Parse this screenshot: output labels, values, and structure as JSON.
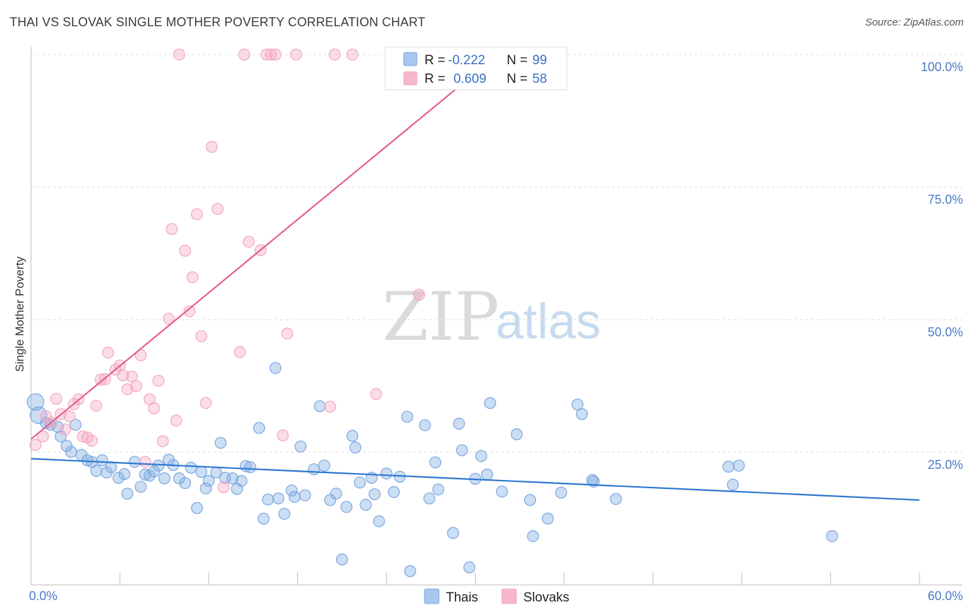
{
  "header": {
    "title": "THAI VS SLOVAK SINGLE MOTHER POVERTY CORRELATION CHART",
    "source": "Source: ZipAtlas.com"
  },
  "watermark": {
    "zip": "ZIP",
    "atlas": "atlas"
  },
  "legend_box": {
    "rows": [
      {
        "r_label": "R =",
        "r_value": "-0.222",
        "n_label": "N =",
        "n_value": "99",
        "color": "#a9c6ee"
      },
      {
        "r_label": "R =",
        "r_value": "0.609",
        "n_label": "N =",
        "n_value": "58",
        "color": "#f6b7ca"
      }
    ]
  },
  "chart_data": {
    "type": "scatter",
    "title": "THAI VS SLOVAK SINGLE MOTHER POVERTY CORRELATION CHART",
    "xlabel": "",
    "ylabel": "Single Mother Poverty",
    "xlim": [
      0,
      60
    ],
    "ylim": [
      0,
      100
    ],
    "x_tick_labels": [
      "0.0%",
      "60.0%"
    ],
    "y_ticks": [
      25,
      50,
      75,
      100
    ],
    "y_tick_labels": [
      "25.0%",
      "50.0%",
      "75.0%",
      "100.0%"
    ],
    "grid": true,
    "legend_position": "bottom",
    "series": [
      {
        "name": "Thais",
        "color": "#7aa7e0",
        "line_color": "#2f78d0",
        "trend": {
          "x": [
            0,
            60
          ],
          "y": [
            23.8,
            16.0
          ]
        },
        "points": [
          [
            0.3,
            34.5
          ],
          [
            0.5,
            32
          ],
          [
            1.0,
            30.5
          ],
          [
            1.3,
            30.2
          ],
          [
            1.8,
            29.8
          ],
          [
            2.0,
            28.0
          ],
          [
            2.4,
            26.2
          ],
          [
            2.7,
            25.1
          ],
          [
            3.0,
            30.2
          ],
          [
            3.4,
            24.5
          ],
          [
            3.8,
            23.5
          ],
          [
            4.1,
            23.2
          ],
          [
            4.4,
            21.5
          ],
          [
            4.8,
            23.5
          ],
          [
            5.1,
            21.2
          ],
          [
            5.4,
            22.2
          ],
          [
            5.9,
            20.2
          ],
          [
            6.3,
            20.9
          ],
          [
            6.5,
            17.2
          ],
          [
            7.0,
            23.2
          ],
          [
            7.4,
            18.5
          ],
          [
            7.7,
            20.8
          ],
          [
            8.0,
            20.6
          ],
          [
            8.3,
            21.4
          ],
          [
            8.6,
            22.5
          ],
          [
            9.0,
            20.1
          ],
          [
            9.3,
            23.6
          ],
          [
            9.6,
            22.6
          ],
          [
            10.0,
            20.1
          ],
          [
            10.4,
            19.2
          ],
          [
            10.8,
            22.1
          ],
          [
            11.2,
            14.5
          ],
          [
            11.5,
            21.3
          ],
          [
            11.8,
            18.2
          ],
          [
            12.0,
            19.6
          ],
          [
            12.5,
            21.2
          ],
          [
            12.8,
            26.8
          ],
          [
            13.1,
            20.2
          ],
          [
            13.6,
            20.1
          ],
          [
            13.9,
            18.1
          ],
          [
            14.2,
            19.6
          ],
          [
            14.5,
            22.4
          ],
          [
            14.8,
            22.2
          ],
          [
            15.4,
            29.6
          ],
          [
            15.7,
            12.5
          ],
          [
            16.0,
            16.1
          ],
          [
            16.5,
            40.9
          ],
          [
            16.7,
            16.3
          ],
          [
            17.1,
            13.4
          ],
          [
            17.6,
            17.8
          ],
          [
            17.8,
            16.6
          ],
          [
            18.2,
            26.1
          ],
          [
            18.5,
            16.9
          ],
          [
            19.1,
            21.8
          ],
          [
            19.5,
            33.7
          ],
          [
            19.8,
            22.5
          ],
          [
            20.2,
            16.0
          ],
          [
            20.6,
            17.2
          ],
          [
            21.0,
            4.8
          ],
          [
            21.3,
            14.7
          ],
          [
            21.7,
            28.1
          ],
          [
            21.9,
            25.9
          ],
          [
            22.2,
            19.3
          ],
          [
            22.6,
            15.1
          ],
          [
            23.0,
            20.2
          ],
          [
            23.2,
            17.1
          ],
          [
            23.5,
            12.0
          ],
          [
            24.0,
            21.0
          ],
          [
            24.5,
            17.5
          ],
          [
            24.9,
            20.4
          ],
          [
            25.4,
            31.7
          ],
          [
            25.6,
            2.6
          ],
          [
            26.6,
            30.1
          ],
          [
            26.9,
            16.3
          ],
          [
            27.3,
            23.1
          ],
          [
            27.5,
            18.0
          ],
          [
            28.5,
            9.8
          ],
          [
            28.9,
            30.4
          ],
          [
            29.1,
            25.4
          ],
          [
            29.6,
            3.3
          ],
          [
            30.0,
            20.0
          ],
          [
            30.4,
            24.3
          ],
          [
            30.8,
            20.8
          ],
          [
            31.0,
            34.3
          ],
          [
            31.8,
            17.6
          ],
          [
            32.8,
            28.4
          ],
          [
            33.7,
            16.0
          ],
          [
            33.9,
            9.2
          ],
          [
            34.9,
            12.5
          ],
          [
            35.8,
            17.4
          ],
          [
            36.9,
            34.0
          ],
          [
            37.2,
            32.2
          ],
          [
            37.9,
            19.8
          ],
          [
            38.0,
            19.5
          ],
          [
            39.5,
            16.2
          ],
          [
            47.1,
            22.3
          ],
          [
            47.4,
            18.9
          ],
          [
            47.8,
            22.5
          ],
          [
            54.1,
            9.2
          ]
        ]
      },
      {
        "name": "Slovaks",
        "color": "#f4a6bf",
        "line_color": "#e4608a",
        "trend": {
          "x": [
            0,
            30
          ],
          "y": [
            27.5,
            96.5
          ]
        },
        "points": [
          [
            0.3,
            26.4
          ],
          [
            0.8,
            28.0
          ],
          [
            1.0,
            31.8
          ],
          [
            1.4,
            30.6
          ],
          [
            1.7,
            35.1
          ],
          [
            2.0,
            32.2
          ],
          [
            2.3,
            29.3
          ],
          [
            2.6,
            31.8
          ],
          [
            2.9,
            34.1
          ],
          [
            3.2,
            35.0
          ],
          [
            3.5,
            28.0
          ],
          [
            3.8,
            27.8
          ],
          [
            4.1,
            27.2
          ],
          [
            4.4,
            33.8
          ],
          [
            4.7,
            38.7
          ],
          [
            5.0,
            38.8
          ],
          [
            5.2,
            43.8
          ],
          [
            5.7,
            40.6
          ],
          [
            6.0,
            41.4
          ],
          [
            6.2,
            39.5
          ],
          [
            6.5,
            36.9
          ],
          [
            6.8,
            39.3
          ],
          [
            7.1,
            37.5
          ],
          [
            7.4,
            43.3
          ],
          [
            7.7,
            23.2
          ],
          [
            8.0,
            35.0
          ],
          [
            8.3,
            33.3
          ],
          [
            8.6,
            38.5
          ],
          [
            8.9,
            27.1
          ],
          [
            9.3,
            50.2
          ],
          [
            9.5,
            67.1
          ],
          [
            9.8,
            31.0
          ],
          [
            10.0,
            100.0
          ],
          [
            10.4,
            63.0
          ],
          [
            10.7,
            51.6
          ],
          [
            10.9,
            58.0
          ],
          [
            11.2,
            69.9
          ],
          [
            11.5,
            46.9
          ],
          [
            11.8,
            34.3
          ],
          [
            12.2,
            82.6
          ],
          [
            12.6,
            70.9
          ],
          [
            13.0,
            18.4
          ],
          [
            14.1,
            43.9
          ],
          [
            14.4,
            100.0
          ],
          [
            14.7,
            64.7
          ],
          [
            15.5,
            63.1
          ],
          [
            15.9,
            100.0
          ],
          [
            16.2,
            100.0
          ],
          [
            16.5,
            100.0
          ],
          [
            17.0,
            28.2
          ],
          [
            17.3,
            47.4
          ],
          [
            17.9,
            100.0
          ],
          [
            20.2,
            33.6
          ],
          [
            20.5,
            100.0
          ],
          [
            21.7,
            100.0
          ],
          [
            23.3,
            36.0
          ],
          [
            26.2,
            54.7
          ],
          [
            28.8,
            100.0
          ]
        ]
      }
    ]
  },
  "bottom_legend": [
    {
      "label": "Thais",
      "color": "#a9c6ee"
    },
    {
      "label": "Slovaks",
      "color": "#f6b7ca"
    }
  ]
}
